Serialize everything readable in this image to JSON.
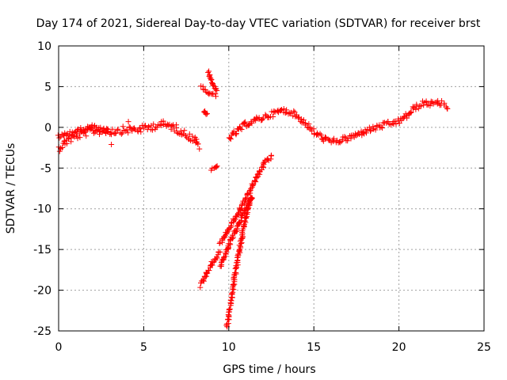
{
  "chart_data": {
    "type": "scatter",
    "title": "Day 174 of 2021, Sidereal Day-to-day VTEC variation (SDTVAR) for receiver brst",
    "xlabel": "GPS time / hours",
    "ylabel": "SDTVAR / TECUs",
    "xlim": [
      0,
      25
    ],
    "ylim": [
      -25,
      10
    ],
    "xticks": [
      0,
      5,
      10,
      15,
      20,
      25
    ],
    "yticks": [
      -25,
      -20,
      -15,
      -10,
      -5,
      0,
      5,
      10
    ],
    "grid": true,
    "marker": "+",
    "color": "#ff0000",
    "series": [
      {
        "name": "trace-main-left",
        "band": 0.9,
        "points": [
          [
            0,
            -2.6
          ],
          [
            0.5,
            -1.6
          ],
          [
            1,
            -1.1
          ],
          [
            2,
            -0.4
          ],
          [
            3,
            -0.5
          ],
          [
            4,
            -0.3
          ],
          [
            5,
            -0.2
          ],
          [
            6,
            0.4
          ],
          [
            6.7,
            0.1
          ],
          [
            7.5,
            -0.9
          ],
          [
            8.0,
            -1.5
          ],
          [
            8.3,
            -2.4
          ]
        ]
      },
      {
        "name": "trace-upper-left",
        "band": 0.5,
        "points": [
          [
            0,
            -1.2
          ],
          [
            0.5,
            -0.8
          ],
          [
            1,
            -0.5
          ],
          [
            1.5,
            -0.2
          ],
          [
            2,
            0.1
          ],
          [
            2.5,
            -0.3
          ],
          [
            3,
            -0.4
          ]
        ]
      },
      {
        "name": "trace-gap-high-a",
        "band": 0.3,
        "points": [
          [
            8.4,
            5.0
          ],
          [
            8.8,
            4.2
          ],
          [
            9.3,
            3.9
          ]
        ]
      },
      {
        "name": "trace-gap-high-b",
        "band": 0.3,
        "points": [
          [
            8.8,
            6.8
          ],
          [
            9.0,
            5.6
          ],
          [
            9.3,
            4.4
          ]
        ]
      },
      {
        "name": "trace-gap-small",
        "band": 0.2,
        "points": [
          [
            8.5,
            2.0
          ],
          [
            8.8,
            1.5
          ]
        ]
      },
      {
        "name": "trace-gap-low",
        "band": 0.2,
        "points": [
          [
            9.0,
            -5.2
          ],
          [
            9.4,
            -4.7
          ]
        ]
      },
      {
        "name": "trace-main-right",
        "band": 0.7,
        "points": [
          [
            10.0,
            -1.3
          ],
          [
            10.5,
            -0.5
          ],
          [
            11,
            0.4
          ],
          [
            12,
            1.2
          ],
          [
            13,
            2.0
          ],
          [
            13.5,
            2.0
          ],
          [
            14,
            1.4
          ],
          [
            14.5,
            0.5
          ],
          [
            15,
            -0.6
          ],
          [
            15.5,
            -1.3
          ],
          [
            16,
            -1.8
          ],
          [
            17,
            -1.4
          ],
          [
            18,
            -0.5
          ],
          [
            19,
            0.2
          ],
          [
            20,
            0.7
          ],
          [
            20.5,
            1.5
          ],
          [
            21,
            2.5
          ],
          [
            21.5,
            3.0
          ],
          [
            22,
            2.9
          ],
          [
            22.5,
            3.0
          ],
          [
            22.9,
            2.5
          ]
        ]
      },
      {
        "name": "trace-descent-a",
        "band": 0.6,
        "points": [
          [
            8.3,
            -19.5
          ],
          [
            8.8,
            -17.5
          ],
          [
            9.5,
            -15.2
          ]
        ]
      },
      {
        "name": "trace-descent-b",
        "band": 0.5,
        "points": [
          [
            9.5,
            -14.2
          ],
          [
            10,
            -12.5
          ],
          [
            10.7,
            -10
          ],
          [
            11.3,
            -7.5
          ],
          [
            11.8,
            -5.5
          ],
          [
            12.2,
            -4.0
          ],
          [
            12.6,
            -3.6
          ]
        ]
      },
      {
        "name": "trace-descent-c",
        "band": 0.5,
        "points": [
          [
            9.9,
            -24.5
          ],
          [
            10.3,
            -19
          ],
          [
            10.8,
            -13
          ],
          [
            11.3,
            -8.5
          ]
        ]
      },
      {
        "name": "trace-descent-d",
        "band": 0.5,
        "points": [
          [
            9.5,
            -17.0
          ],
          [
            10.2,
            -13.5
          ],
          [
            11.0,
            -10.0
          ],
          [
            11.4,
            -8.5
          ]
        ]
      },
      {
        "name": "isolated-points",
        "band": 0,
        "points": [
          [
            3.1,
            -2.1
          ],
          [
            4.1,
            0.7
          ]
        ]
      }
    ]
  }
}
